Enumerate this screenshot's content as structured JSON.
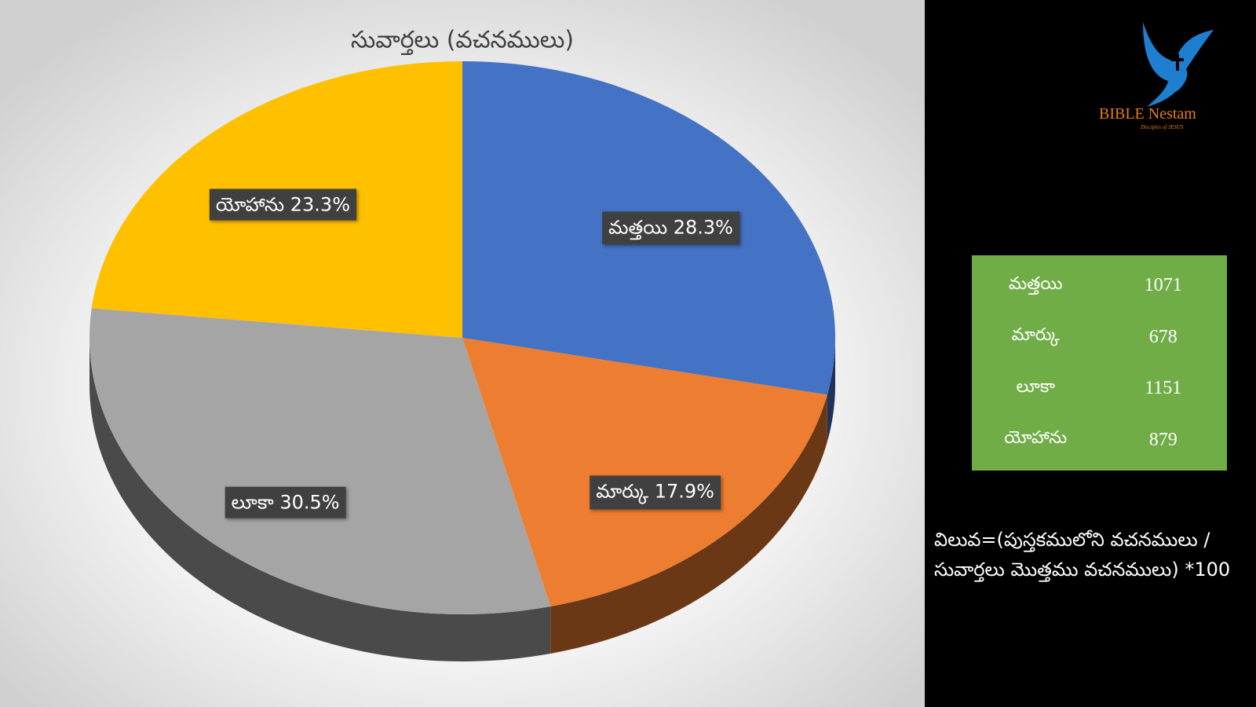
{
  "chart_data": {
    "type": "pie",
    "title": "సువార్తలు (వచనములు)",
    "categories": [
      "మత్తయి",
      "మార్కు",
      "లూకా",
      "యోహాను"
    ],
    "values": [
      28.3,
      17.9,
      30.5,
      23.3
    ],
    "value_labels": [
      "28.3%",
      "17.9%",
      "30.5%",
      "23.3%"
    ],
    "colors": [
      "#4472c4",
      "#ed7d31",
      "#a5a5a5",
      "#ffc000"
    ]
  },
  "table": {
    "rows": [
      [
        "మత్తయి",
        1071
      ],
      [
        "మార్కు",
        678
      ],
      [
        "లూకా",
        1151
      ],
      [
        "యోహాను",
        879
      ]
    ]
  },
  "note": "విలువ=(పుస్తకములోని వచనములు / సువార్తలు మొత్తము వచనములు) *100",
  "logo": {
    "name": "BIBLE Nestam",
    "tagline": "Disciples of JESUS"
  }
}
